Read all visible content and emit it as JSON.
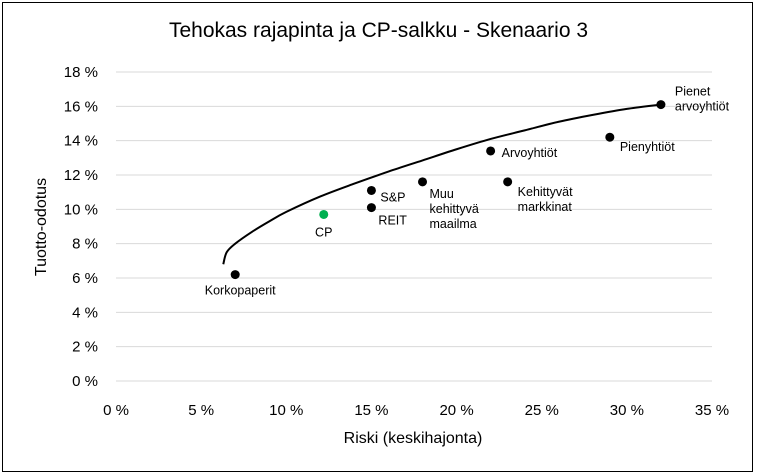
{
  "chart_data": {
    "type": "scatter",
    "title": "Tehokas rajapinta ja CP-salkku - Skenaario 3",
    "xlabel": "Riski (keskihajonta)",
    "ylabel": "Tuotto-odotus",
    "xlim": [
      0,
      35
    ],
    "ylim": [
      0,
      18
    ],
    "x_ticks": [
      "0 %",
      "5 %",
      "10 %",
      "15 %",
      "20 %",
      "25 %",
      "30 %",
      "35 %"
    ],
    "y_ticks": [
      "0 %",
      "2 %",
      "4 %",
      "6 %",
      "8 %",
      "10 %",
      "12 %",
      "14 %",
      "16 %",
      "18 %"
    ],
    "grid": "horizontal",
    "legend": "none",
    "points": [
      {
        "label": "Korkopaperit",
        "x": 7.0,
        "y": 6.2,
        "color": "#000000"
      },
      {
        "label": "CP",
        "x": 12.2,
        "y": 9.7,
        "color": "#00b050"
      },
      {
        "label": "S&P",
        "x": 15.0,
        "y": 11.1,
        "color": "#000000"
      },
      {
        "label": "REIT",
        "x": 15.0,
        "y": 10.1,
        "color": "#000000"
      },
      {
        "label": "Muu kehittyvä maailma",
        "x": 18.0,
        "y": 11.6,
        "color": "#000000"
      },
      {
        "label": "Arvoyhtiöt",
        "x": 22.0,
        "y": 13.4,
        "color": "#000000"
      },
      {
        "label": "Kehittyvät markkinat",
        "x": 23.0,
        "y": 11.6,
        "color": "#000000"
      },
      {
        "label": "Pienyhtiöt",
        "x": 29.0,
        "y": 14.2,
        "color": "#000000"
      },
      {
        "label": "Pienet arvoyhtiöt",
        "x": 32.0,
        "y": 16.1,
        "color": "#000000"
      }
    ],
    "frontier": [
      [
        6.3,
        6.8
      ],
      [
        6.5,
        7.5
      ],
      [
        7.0,
        8.0
      ],
      [
        8.0,
        8.7
      ],
      [
        9.0,
        9.3
      ],
      [
        10.0,
        9.85
      ],
      [
        12.0,
        10.75
      ],
      [
        14.0,
        11.5
      ],
      [
        16.0,
        12.2
      ],
      [
        18.0,
        12.85
      ],
      [
        20.0,
        13.5
      ],
      [
        22.0,
        14.1
      ],
      [
        24.0,
        14.6
      ],
      [
        26.0,
        15.1
      ],
      [
        28.0,
        15.5
      ],
      [
        30.0,
        15.85
      ],
      [
        32.0,
        16.1
      ]
    ]
  }
}
